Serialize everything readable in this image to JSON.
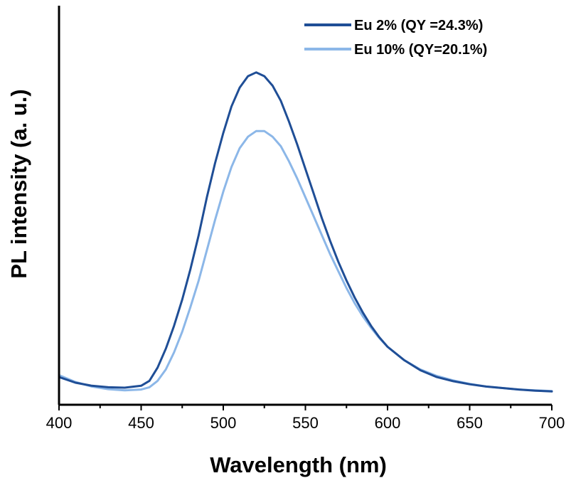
{
  "chart_data": {
    "type": "line",
    "title": "",
    "xlabel": "Wavelength (nm)",
    "ylabel": "PL intensity (a. u.)",
    "xlim": [
      400,
      700
    ],
    "ylim": [
      0,
      1
    ],
    "xticks": [
      400,
      450,
      500,
      550,
      600,
      650,
      700
    ],
    "ytick_labels_shown": false,
    "grid": false,
    "legend_position": "top-right",
    "series": [
      {
        "name": "Eu 2% (QY =24.3%)",
        "color": "#1F4E96",
        "x": [
          400,
          410,
          420,
          430,
          440,
          450,
          455,
          460,
          465,
          470,
          475,
          480,
          485,
          490,
          495,
          500,
          505,
          510,
          515,
          520,
          525,
          530,
          535,
          540,
          545,
          550,
          555,
          560,
          565,
          570,
          575,
          580,
          585,
          590,
          595,
          600,
          610,
          620,
          630,
          640,
          650,
          660,
          670,
          680,
          690,
          700
        ],
        "y": [
          0.045,
          0.03,
          0.022,
          0.018,
          0.017,
          0.022,
          0.035,
          0.07,
          0.12,
          0.18,
          0.25,
          0.33,
          0.42,
          0.52,
          0.61,
          0.69,
          0.76,
          0.81,
          0.84,
          0.85,
          0.84,
          0.815,
          0.775,
          0.72,
          0.66,
          0.595,
          0.53,
          0.465,
          0.405,
          0.35,
          0.3,
          0.255,
          0.215,
          0.18,
          0.15,
          0.125,
          0.09,
          0.063,
          0.045,
          0.034,
          0.026,
          0.02,
          0.016,
          0.012,
          0.009,
          0.007
        ]
      },
      {
        "name": "Eu 10% (QY=20.1%)",
        "color": "#8CB7E8",
        "x": [
          400,
          410,
          420,
          430,
          440,
          450,
          455,
          460,
          465,
          470,
          475,
          480,
          485,
          490,
          495,
          500,
          505,
          510,
          515,
          520,
          525,
          530,
          535,
          540,
          545,
          550,
          555,
          560,
          565,
          570,
          575,
          580,
          585,
          590,
          595,
          600,
          610,
          620,
          630,
          640,
          650,
          660,
          670,
          680,
          690,
          700
        ],
        "y": [
          0.05,
          0.032,
          0.02,
          0.013,
          0.01,
          0.012,
          0.018,
          0.035,
          0.065,
          0.11,
          0.165,
          0.23,
          0.3,
          0.38,
          0.46,
          0.535,
          0.6,
          0.65,
          0.68,
          0.695,
          0.695,
          0.68,
          0.655,
          0.615,
          0.57,
          0.52,
          0.47,
          0.42,
          0.37,
          0.325,
          0.28,
          0.24,
          0.205,
          0.175,
          0.148,
          0.125,
          0.09,
          0.065,
          0.048,
          0.036,
          0.027,
          0.02,
          0.016,
          0.012,
          0.01,
          0.008
        ]
      }
    ]
  }
}
